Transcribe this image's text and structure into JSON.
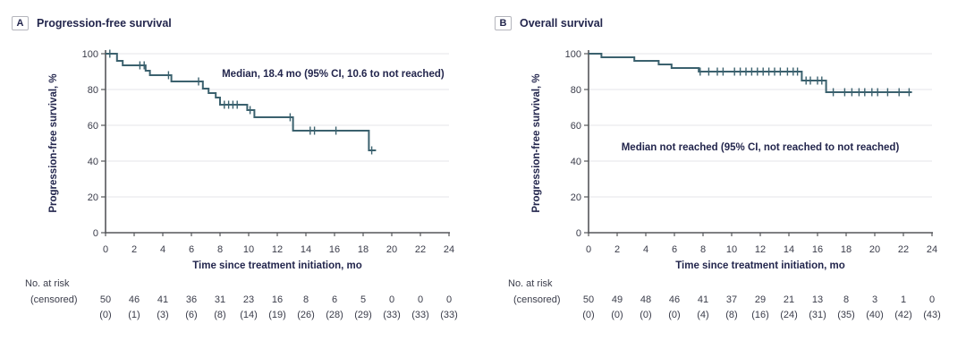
{
  "colors": {
    "curve": "#3b616e",
    "grid": "#e9eaed",
    "axis": "#55565a",
    "title_text": "#23264d",
    "tick_text": "#3a3c4a",
    "background": "#ffffff"
  },
  "chart_data": [
    {
      "type": "line",
      "subtype": "kaplan_meier_step",
      "panel": "A",
      "title": "Progression-free survival",
      "xlabel": "Time since treatment initiation, mo",
      "ylabel": "Progression-free survival, %",
      "xlim": [
        0,
        24
      ],
      "ylim": [
        0,
        100
      ],
      "xticks": [
        0,
        2,
        4,
        6,
        8,
        10,
        12,
        14,
        16,
        18,
        20,
        22,
        24
      ],
      "yticks": [
        0,
        20,
        40,
        60,
        80,
        100
      ],
      "grid": "horizontal",
      "legend": "none",
      "annotation": "Median, 18.4 mo (95% CI, 10.6 to not reached)",
      "annotation_pos": [
        15.9,
        89
      ],
      "steps": [
        [
          0,
          100
        ],
        [
          0.8,
          96
        ],
        [
          1.2,
          93.5
        ],
        [
          2.8,
          90.5
        ],
        [
          3.1,
          88
        ],
        [
          4.6,
          84.5
        ],
        [
          6.8,
          80.5
        ],
        [
          7.2,
          78
        ],
        [
          7.7,
          75.5
        ],
        [
          8.0,
          71.5
        ],
        [
          9.9,
          68.5
        ],
        [
          10.4,
          64.5
        ],
        [
          13.1,
          57
        ],
        [
          18.4,
          46
        ]
      ],
      "curve_end": 18.9,
      "censor_marks": [
        [
          0.3,
          100
        ],
        [
          2.4,
          93.5
        ],
        [
          2.7,
          93.5
        ],
        [
          4.4,
          88
        ],
        [
          6.5,
          84.5
        ],
        [
          8.3,
          71.5
        ],
        [
          8.6,
          71.5
        ],
        [
          8.9,
          71.5
        ],
        [
          9.2,
          71.5
        ],
        [
          10.1,
          68.5
        ],
        [
          12.9,
          64.5
        ],
        [
          14.3,
          57
        ],
        [
          14.6,
          57
        ],
        [
          16.1,
          57
        ],
        [
          18.6,
          46
        ]
      ],
      "at_risk_label": [
        "No. at risk",
        "(censored)"
      ],
      "at_risk": [
        50,
        46,
        41,
        36,
        31,
        23,
        16,
        8,
        6,
        5,
        0,
        0,
        0
      ],
      "censored": [
        0,
        1,
        3,
        6,
        8,
        14,
        19,
        26,
        28,
        29,
        33,
        33,
        33
      ]
    },
    {
      "type": "line",
      "subtype": "kaplan_meier_step",
      "panel": "B",
      "title": "Overall survival",
      "xlabel": "Time since treatment initiation, mo",
      "ylabel": "Progression-free survival, %",
      "xlim": [
        0,
        24
      ],
      "ylim": [
        0,
        100
      ],
      "xticks": [
        0,
        2,
        4,
        6,
        8,
        10,
        12,
        14,
        16,
        18,
        20,
        22,
        24
      ],
      "yticks": [
        0,
        20,
        40,
        60,
        80,
        100
      ],
      "grid": "horizontal",
      "legend": "none",
      "annotation": "Median not reached (95% CI, not reached to not reached)",
      "annotation_pos": [
        12,
        48
      ],
      "steps": [
        [
          0,
          100
        ],
        [
          0.9,
          98
        ],
        [
          3.2,
          96
        ],
        [
          4.9,
          94
        ],
        [
          5.8,
          92
        ],
        [
          7.7,
          90
        ],
        [
          14.9,
          85
        ],
        [
          16.6,
          78.5
        ]
      ],
      "curve_end": 22.6,
      "censor_marks": [
        [
          7.8,
          90
        ],
        [
          8.4,
          90
        ],
        [
          9.0,
          90
        ],
        [
          9.4,
          90
        ],
        [
          10.2,
          90
        ],
        [
          10.6,
          90
        ],
        [
          11.0,
          90
        ],
        [
          11.4,
          90
        ],
        [
          11.8,
          90
        ],
        [
          12.2,
          90
        ],
        [
          12.6,
          90
        ],
        [
          13.0,
          90
        ],
        [
          13.4,
          90
        ],
        [
          13.9,
          90
        ],
        [
          14.3,
          90
        ],
        [
          14.6,
          90
        ],
        [
          15.2,
          85
        ],
        [
          15.5,
          85
        ],
        [
          16.0,
          85
        ],
        [
          16.3,
          85
        ],
        [
          17.1,
          78.5
        ],
        [
          17.9,
          78.5
        ],
        [
          18.4,
          78.5
        ],
        [
          18.9,
          78.5
        ],
        [
          19.3,
          78.5
        ],
        [
          19.8,
          78.5
        ],
        [
          20.2,
          78.5
        ],
        [
          20.9,
          78.5
        ],
        [
          21.7,
          78.5
        ],
        [
          22.4,
          78.5
        ]
      ],
      "at_risk_label": [
        "No. at risk",
        "(censored)"
      ],
      "at_risk": [
        50,
        49,
        48,
        46,
        41,
        37,
        29,
        21,
        13,
        8,
        3,
        1,
        0
      ],
      "censored": [
        0,
        0,
        0,
        0,
        4,
        8,
        16,
        24,
        31,
        35,
        40,
        42,
        43
      ]
    }
  ]
}
